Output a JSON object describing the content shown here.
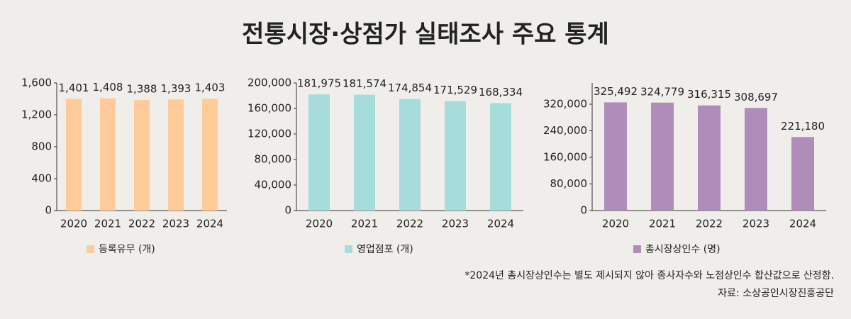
{
  "title": "전통시장·상점가 실태조사 주요 통계",
  "note": "*2024년 총시장상인수는 별도 제시되지 않아 종사자수와 노점상인수 합산값으로 산정함.",
  "source": "자료: 소상공인시장진흥공단",
  "chart_data": [
    {
      "type": "bar",
      "categories": [
        "2020",
        "2021",
        "2022",
        "2023",
        "2024"
      ],
      "series": [
        {
          "name": "등록유무 (개)",
          "color": "#ffcc99",
          "values": [
            1401,
            1408,
            1388,
            1393,
            1403
          ],
          "value_labels": [
            "1,401",
            "1,408",
            "1,388",
            "1,393",
            "1,403"
          ]
        }
      ],
      "ylim": [
        0,
        1600
      ],
      "yticks": [
        0,
        400,
        800,
        {
          "value": 1200,
          "label": "1,200"
        },
        {
          "value": 1600,
          "label": "1,600"
        }
      ]
    },
    {
      "type": "bar",
      "categories": [
        "2020",
        "2021",
        "2022",
        "2023",
        "2024"
      ],
      "series": [
        {
          "name": "영업점포 (개)",
          "color": "#a6dcdc",
          "values": [
            181975,
            181574,
            174854,
            171529,
            168334
          ],
          "value_labels": [
            "181,975",
            "181,574",
            "174,854",
            "171,529",
            "168,334"
          ]
        }
      ],
      "ylim": [
        0,
        200000
      ],
      "yticks": [
        0,
        {
          "value": 40000,
          "label": "40,000"
        },
        {
          "value": 80000,
          "label": "80,000"
        },
        {
          "value": 120000,
          "label": "120,000"
        },
        {
          "value": 160000,
          "label": "160,000"
        },
        {
          "value": 200000,
          "label": "200,000"
        }
      ]
    },
    {
      "type": "bar",
      "categories": [
        "2020",
        "2021",
        "2022",
        "2023",
        "2024"
      ],
      "series": [
        {
          "name": "총시장상인수 (명)",
          "color": "#b08cb8",
          "values": [
            325492,
            324779,
            316315,
            308697,
            221180
          ],
          "value_labels": [
            "325,492",
            "324,779",
            "316,315",
            "308,697",
            "221,180"
          ]
        }
      ],
      "ylim": [
        0,
        384000
      ],
      "yticks": [
        0,
        {
          "value": 80000,
          "label": "80,000"
        },
        {
          "value": 160000,
          "label": "160,000"
        },
        {
          "value": 240000,
          "label": "240,000"
        },
        {
          "value": 320000,
          "label": "320,000"
        }
      ]
    }
  ]
}
